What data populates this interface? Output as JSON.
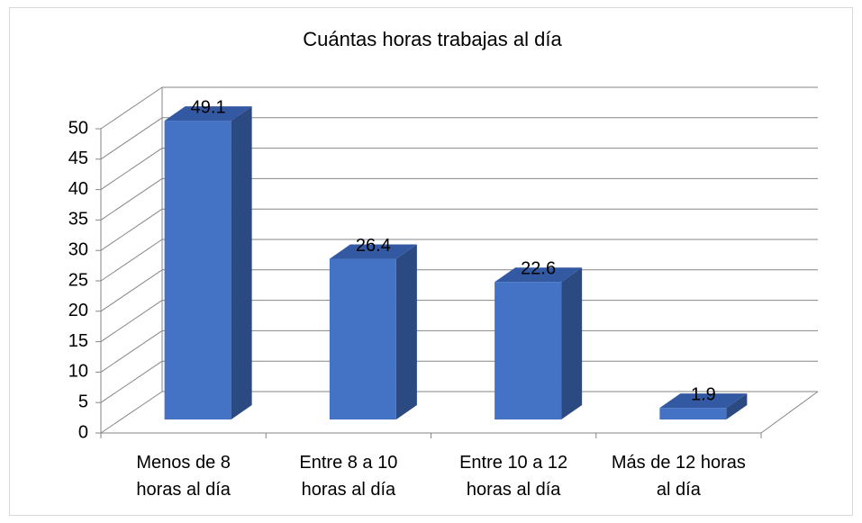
{
  "chart_data": {
    "type": "bar3d",
    "title": "Cuántas horas trabajas al día",
    "categories": [
      "Menos de 8 horas al día",
      "Entre 8 a 10 horas al día",
      "Entre 10 a 12 horas al día",
      "Más de 12 horas al día"
    ],
    "values": [
      49.1,
      26.4,
      22.6,
      1.9
    ],
    "color": "#4472c4",
    "ylim": [
      0,
      50
    ],
    "yticks": [
      0,
      5,
      10,
      15,
      20,
      25,
      30,
      35,
      40,
      45,
      50
    ],
    "grid": true
  }
}
